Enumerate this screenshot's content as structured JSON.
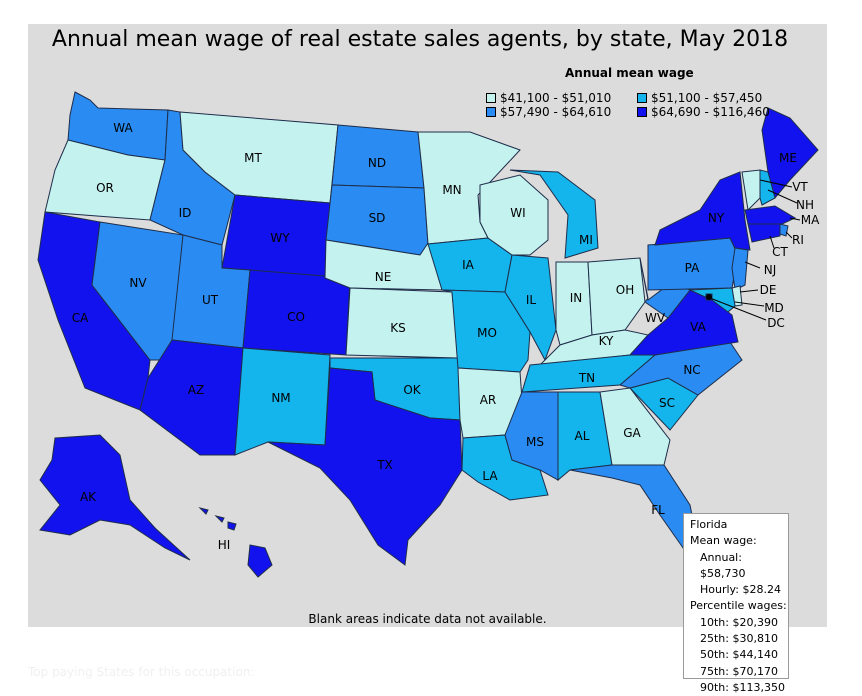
{
  "title": "Annual mean wage of real estate sales agents, by state, May 2018",
  "legend": {
    "title": "Annual mean wage",
    "items": [
      {
        "label": "$41,100 - $51,010",
        "color": "#c4f2ef"
      },
      {
        "label": "$51,100 - $57,450",
        "color": "#14b4ec"
      },
      {
        "label": "$57,490 - $64,610",
        "color": "#2a8cf2"
      },
      {
        "label": "$64,690 - $116,460",
        "color": "#1212ee"
      }
    ]
  },
  "footnote": "Blank areas indicate data not available.",
  "bottom_text": "Top paying States for this occupation:",
  "tooltip": {
    "state": "Florida",
    "mean_label": "Mean wage:",
    "annual": "Annual: $58,730",
    "hourly": "Hourly: $28.24",
    "percentile_label": "Percentile wages:",
    "p10": "10th: $20,390",
    "p25": "25th: $30,810",
    "p50": "50th: $44,140",
    "p75": "75th: $70,170",
    "p90": "90th: $113,350"
  },
  "states": [
    {
      "abbr": "WA",
      "bin": 2
    },
    {
      "abbr": "OR",
      "bin": 0
    },
    {
      "abbr": "CA",
      "bin": 3
    },
    {
      "abbr": "NV",
      "bin": 2
    },
    {
      "abbr": "ID",
      "bin": 2
    },
    {
      "abbr": "MT",
      "bin": 0
    },
    {
      "abbr": "WY",
      "bin": 3
    },
    {
      "abbr": "UT",
      "bin": 2
    },
    {
      "abbr": "CO",
      "bin": 3
    },
    {
      "abbr": "AZ",
      "bin": 3
    },
    {
      "abbr": "NM",
      "bin": 1
    },
    {
      "abbr": "ND",
      "bin": 2
    },
    {
      "abbr": "SD",
      "bin": 2
    },
    {
      "abbr": "NE",
      "bin": 0
    },
    {
      "abbr": "KS",
      "bin": 0
    },
    {
      "abbr": "OK",
      "bin": 1
    },
    {
      "abbr": "TX",
      "bin": 3
    },
    {
      "abbr": "MN",
      "bin": 0
    },
    {
      "abbr": "IA",
      "bin": 1
    },
    {
      "abbr": "MO",
      "bin": 1
    },
    {
      "abbr": "AR",
      "bin": 0
    },
    {
      "abbr": "LA",
      "bin": 1
    },
    {
      "abbr": "WI",
      "bin": 0
    },
    {
      "abbr": "IL",
      "bin": 1
    },
    {
      "abbr": "MI",
      "bin": 1
    },
    {
      "abbr": "IN",
      "bin": 0
    },
    {
      "abbr": "OH",
      "bin": 0
    },
    {
      "abbr": "KY",
      "bin": 0
    },
    {
      "abbr": "TN",
      "bin": 1
    },
    {
      "abbr": "MS",
      "bin": 2
    },
    {
      "abbr": "AL",
      "bin": 1
    },
    {
      "abbr": "GA",
      "bin": 0
    },
    {
      "abbr": "FL",
      "bin": 2
    },
    {
      "abbr": "SC",
      "bin": 1
    },
    {
      "abbr": "NC",
      "bin": 2
    },
    {
      "abbr": "VA",
      "bin": 3
    },
    {
      "abbr": "WV",
      "bin": 2
    },
    {
      "abbr": "PA",
      "bin": 2
    },
    {
      "abbr": "NY",
      "bin": 3
    },
    {
      "abbr": "ME",
      "bin": 3
    },
    {
      "abbr": "VT",
      "bin": 0
    },
    {
      "abbr": "NH",
      "bin": 1
    },
    {
      "abbr": "MA",
      "bin": 3
    },
    {
      "abbr": "RI",
      "bin": 2
    },
    {
      "abbr": "CT",
      "bin": 3
    },
    {
      "abbr": "NJ",
      "bin": 2
    },
    {
      "abbr": "DE",
      "bin": 0
    },
    {
      "abbr": "MD",
      "bin": 1
    },
    {
      "abbr": "DC",
      "bin": 3
    },
    {
      "abbr": "AK",
      "bin": 3
    },
    {
      "abbr": "HI",
      "bin": 3
    }
  ]
}
